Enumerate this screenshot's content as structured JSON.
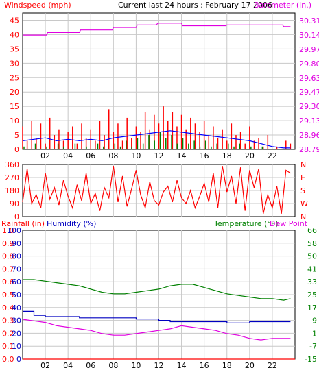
{
  "chart_data": [
    {
      "type": "line",
      "title": "Current last 24 hours : February 17 2006",
      "y_left_label": "Windspeed (mph)",
      "y_right_label": "Barometer (in.)",
      "x_ticks": [
        "02",
        "04",
        "06",
        "08",
        "10",
        "12",
        "14",
        "16",
        "18",
        "20",
        "22"
      ],
      "xlim": [
        0,
        24
      ],
      "y_left_ticks": [
        "0",
        "5",
        "10",
        "15",
        "20",
        "25",
        "30",
        "35",
        "40",
        "45"
      ],
      "ylim_left": [
        0,
        47.5
      ],
      "y_right_ticks": [
        "28.79",
        "28.96",
        "29.13",
        "29.30",
        "29.47",
        "29.63",
        "29.80",
        "29.97",
        "30.14",
        "30.31"
      ],
      "ylim_right": [
        28.79,
        30.4
      ],
      "grid": true,
      "colors": {
        "wind": "#ff0000",
        "barometer": "#e000e0",
        "avg_wind": "#0000ff",
        "wind_low": "#008000",
        "frame": "#000000",
        "grid": "#c8c8c8"
      },
      "series": [
        {
          "name": "Barometer (in.)",
          "axis": "right",
          "x": [
            0,
            2.1,
            2.2,
            5.0,
            5.1,
            7.9,
            8.0,
            10.0,
            10.1,
            11.8,
            11.9,
            14.0,
            14.1,
            17.9,
            18.0,
            22.9,
            23.0,
            23.6
          ],
          "values": [
            30.14,
            30.14,
            30.17,
            30.17,
            30.2,
            30.2,
            30.23,
            30.23,
            30.26,
            30.26,
            30.28,
            30.28,
            30.25,
            30.25,
            30.26,
            30.26,
            30.24,
            30.24
          ]
        },
        {
          "name": "Windspeed (mph)",
          "axis": "left",
          "x": [
            0.0,
            0.4,
            0.8,
            1.2,
            1.6,
            2.0,
            2.4,
            2.8,
            3.2,
            3.6,
            4.0,
            4.4,
            4.8,
            5.2,
            5.6,
            6.0,
            6.4,
            6.8,
            7.2,
            7.6,
            8.0,
            8.4,
            8.8,
            9.2,
            9.6,
            10.0,
            10.4,
            10.8,
            11.2,
            11.6,
            12.0,
            12.4,
            12.8,
            13.2,
            13.6,
            14.0,
            14.4,
            14.8,
            15.2,
            15.6,
            16.0,
            16.4,
            16.8,
            17.2,
            17.6,
            18.0,
            18.4,
            18.8,
            19.2,
            19.6,
            20.0,
            20.4,
            20.8,
            21.2,
            21.6,
            22.0,
            22.4,
            22.8,
            23.2,
            23.6
          ],
          "values": [
            8,
            3,
            10,
            4,
            9,
            2,
            11,
            5,
            7,
            3,
            6,
            8,
            2,
            9,
            4,
            7,
            3,
            10,
            5,
            14,
            6,
            9,
            3,
            11,
            4,
            8,
            6,
            13,
            7,
            12,
            9,
            15,
            10,
            13,
            8,
            12,
            7,
            11,
            9,
            6,
            10,
            5,
            8,
            4,
            7,
            3,
            9,
            5,
            6,
            2,
            8,
            3,
            4,
            1,
            5,
            0,
            1,
            0,
            3,
            2
          ]
        },
        {
          "name": "Avg wind",
          "axis": "left",
          "x": [
            0,
            1,
            2,
            3,
            4,
            5,
            6,
            7,
            8,
            9,
            10,
            11,
            12,
            13,
            14,
            15,
            16,
            17,
            18,
            19,
            20,
            21,
            22,
            23,
            23.6
          ],
          "values": [
            3,
            3.5,
            4,
            3,
            3.5,
            3,
            3.5,
            3,
            4,
            4.5,
            5,
            5.5,
            6,
            6.5,
            6,
            5.5,
            5,
            4.5,
            4,
            3.5,
            3,
            2,
            1,
            0.5,
            0.5
          ]
        },
        {
          "name": "Wind low",
          "axis": "left",
          "x": [
            0.0,
            0.5,
            1.0,
            1.5,
            2.0,
            2.5,
            3.0,
            3.5,
            4.0,
            4.5,
            5.0,
            5.5,
            6.0,
            6.5,
            7.0,
            7.5,
            8.0,
            8.5,
            9.0,
            9.5,
            10.0,
            10.5,
            11.0,
            11.5,
            12.0,
            12.5,
            13.0,
            13.5,
            14.0,
            14.5,
            15.0,
            15.5,
            16.0,
            16.5,
            17.0,
            17.5,
            18.0,
            18.5,
            19.0,
            19.5,
            20.0,
            20.5,
            21.0,
            21.5,
            22.0,
            22.5,
            23.0,
            23.5
          ],
          "values": [
            1,
            0,
            2,
            0,
            1,
            0,
            2,
            1,
            0,
            2,
            0,
            1,
            0,
            2,
            1,
            0,
            2,
            1,
            3,
            1,
            4,
            2,
            5,
            3,
            6,
            4,
            5,
            2,
            4,
            2,
            3,
            1,
            3,
            1,
            2,
            0,
            2,
            1,
            2,
            0,
            1,
            0,
            1,
            0,
            0,
            0,
            0,
            0
          ]
        }
      ]
    },
    {
      "type": "line",
      "y_left_ticks": [
        "0",
        "90",
        "180",
        "270",
        "360"
      ],
      "ylim": [
        0,
        360
      ],
      "y_right_ticks": [
        "N",
        "W",
        "S",
        "E",
        "N"
      ],
      "xlim": [
        0,
        24
      ],
      "grid": true,
      "colors": {
        "direction": "#ff0000"
      },
      "series": [
        {
          "name": "Wind direction",
          "x": [
            0.0,
            0.4,
            0.8,
            1.2,
            1.6,
            2.0,
            2.4,
            2.8,
            3.2,
            3.6,
            4.0,
            4.4,
            4.8,
            5.2,
            5.6,
            6.0,
            6.4,
            6.8,
            7.2,
            7.6,
            8.0,
            8.4,
            8.8,
            9.2,
            9.6,
            10.0,
            10.4,
            10.8,
            11.2,
            11.6,
            12.0,
            12.4,
            12.8,
            13.2,
            13.6,
            14.0,
            14.4,
            14.8,
            15.2,
            15.6,
            16.0,
            16.4,
            16.8,
            17.2,
            17.6,
            18.0,
            18.4,
            18.8,
            19.2,
            19.6,
            20.0,
            20.4,
            20.8,
            21.2,
            21.6,
            22.0,
            22.4,
            22.8,
            23.2,
            23.6
          ],
          "values": [
            100,
            330,
            90,
            150,
            60,
            300,
            120,
            200,
            80,
            250,
            140,
            60,
            220,
            110,
            300,
            90,
            160,
            40,
            200,
            130,
            350,
            100,
            280,
            70,
            190,
            320,
            150,
            60,
            240,
            110,
            80,
            170,
            210,
            100,
            250,
            130,
            90,
            180,
            60,
            140,
            230,
            100,
            300,
            60,
            350,
            170,
            280,
            90,
            340,
            40,
            320,
            200,
            330,
            20,
            150,
            60,
            210,
            20,
            320,
            300
          ]
        }
      ]
    },
    {
      "type": "line",
      "y_left_label": "Rainfall (in)",
      "y_left2_label": "Humidity (%)",
      "y_right_label": "Temperature (°F)",
      "y_right2_label": "Dew Point",
      "x_ticks": [
        "02",
        "04",
        "06",
        "08",
        "10",
        "12",
        "14",
        "16",
        "18",
        "20",
        "22"
      ],
      "xlim": [
        0,
        24
      ],
      "y_left_ticks": [
        "0.0",
        "0.1",
        "0.2",
        "0.3",
        "0.4",
        "0.5",
        "0.6",
        "0.7",
        "0.8",
        "0.9",
        "1.0"
      ],
      "y_left2_ticks": [
        "0",
        "10",
        "20",
        "30",
        "40",
        "50",
        "60",
        "70",
        "80",
        "90",
        "100"
      ],
      "y_right_ticks": [
        "-15",
        "-7",
        "1",
        "9",
        "17",
        "25",
        "33",
        "41",
        "50",
        "58",
        "66"
      ],
      "ylim_rain": [
        0,
        1.0
      ],
      "ylim_humidity": [
        0,
        100
      ],
      "ylim_temp": [
        -15,
        66
      ],
      "grid": true,
      "colors": {
        "rain": "#ff0000",
        "humidity": "#0000c0",
        "temperature": "#008000",
        "dewpoint": "#e000e0"
      },
      "series": [
        {
          "name": "Rainfall (in)",
          "axis": "rain",
          "x": [
            0,
            24
          ],
          "values": [
            0,
            0
          ]
        },
        {
          "name": "Humidity (%)",
          "axis": "humidity",
          "x": [
            0,
            1,
            2,
            3,
            4,
            5,
            6,
            7,
            8,
            9,
            10,
            11,
            12,
            13,
            14,
            15,
            16,
            17,
            18,
            19,
            20,
            21,
            22,
            23,
            23.6
          ],
          "values": [
            37,
            34,
            33,
            33,
            33,
            32,
            32,
            32,
            32,
            32,
            31,
            31,
            30,
            29,
            29,
            29,
            29,
            29,
            28,
            28,
            29,
            29,
            29,
            29,
            29
          ]
        },
        {
          "name": "Temperature (°F)",
          "axis": "temp",
          "x": [
            0,
            1,
            2,
            3,
            4,
            5,
            6,
            7,
            8,
            9,
            10,
            11,
            12,
            13,
            14,
            15,
            16,
            17,
            18,
            19,
            20,
            21,
            22,
            23,
            23.6
          ],
          "values": [
            35,
            35,
            34,
            33,
            32,
            31,
            29,
            27,
            26,
            26,
            27,
            28,
            29,
            31,
            32,
            32,
            30,
            28,
            26,
            25,
            24,
            23,
            23,
            22,
            23
          ]
        },
        {
          "name": "Dew Point",
          "axis": "temp",
          "x": [
            0,
            1,
            2,
            3,
            4,
            5,
            6,
            7,
            8,
            9,
            10,
            11,
            12,
            13,
            14,
            15,
            16,
            17,
            18,
            19,
            20,
            21,
            22,
            23,
            23.6
          ],
          "values": [
            10,
            9,
            8,
            6,
            5,
            4,
            3,
            1,
            0,
            0,
            1,
            2,
            3,
            4,
            6,
            5,
            4,
            3,
            1,
            0,
            -2,
            -3,
            -2,
            -2,
            -2
          ]
        }
      ]
    }
  ]
}
